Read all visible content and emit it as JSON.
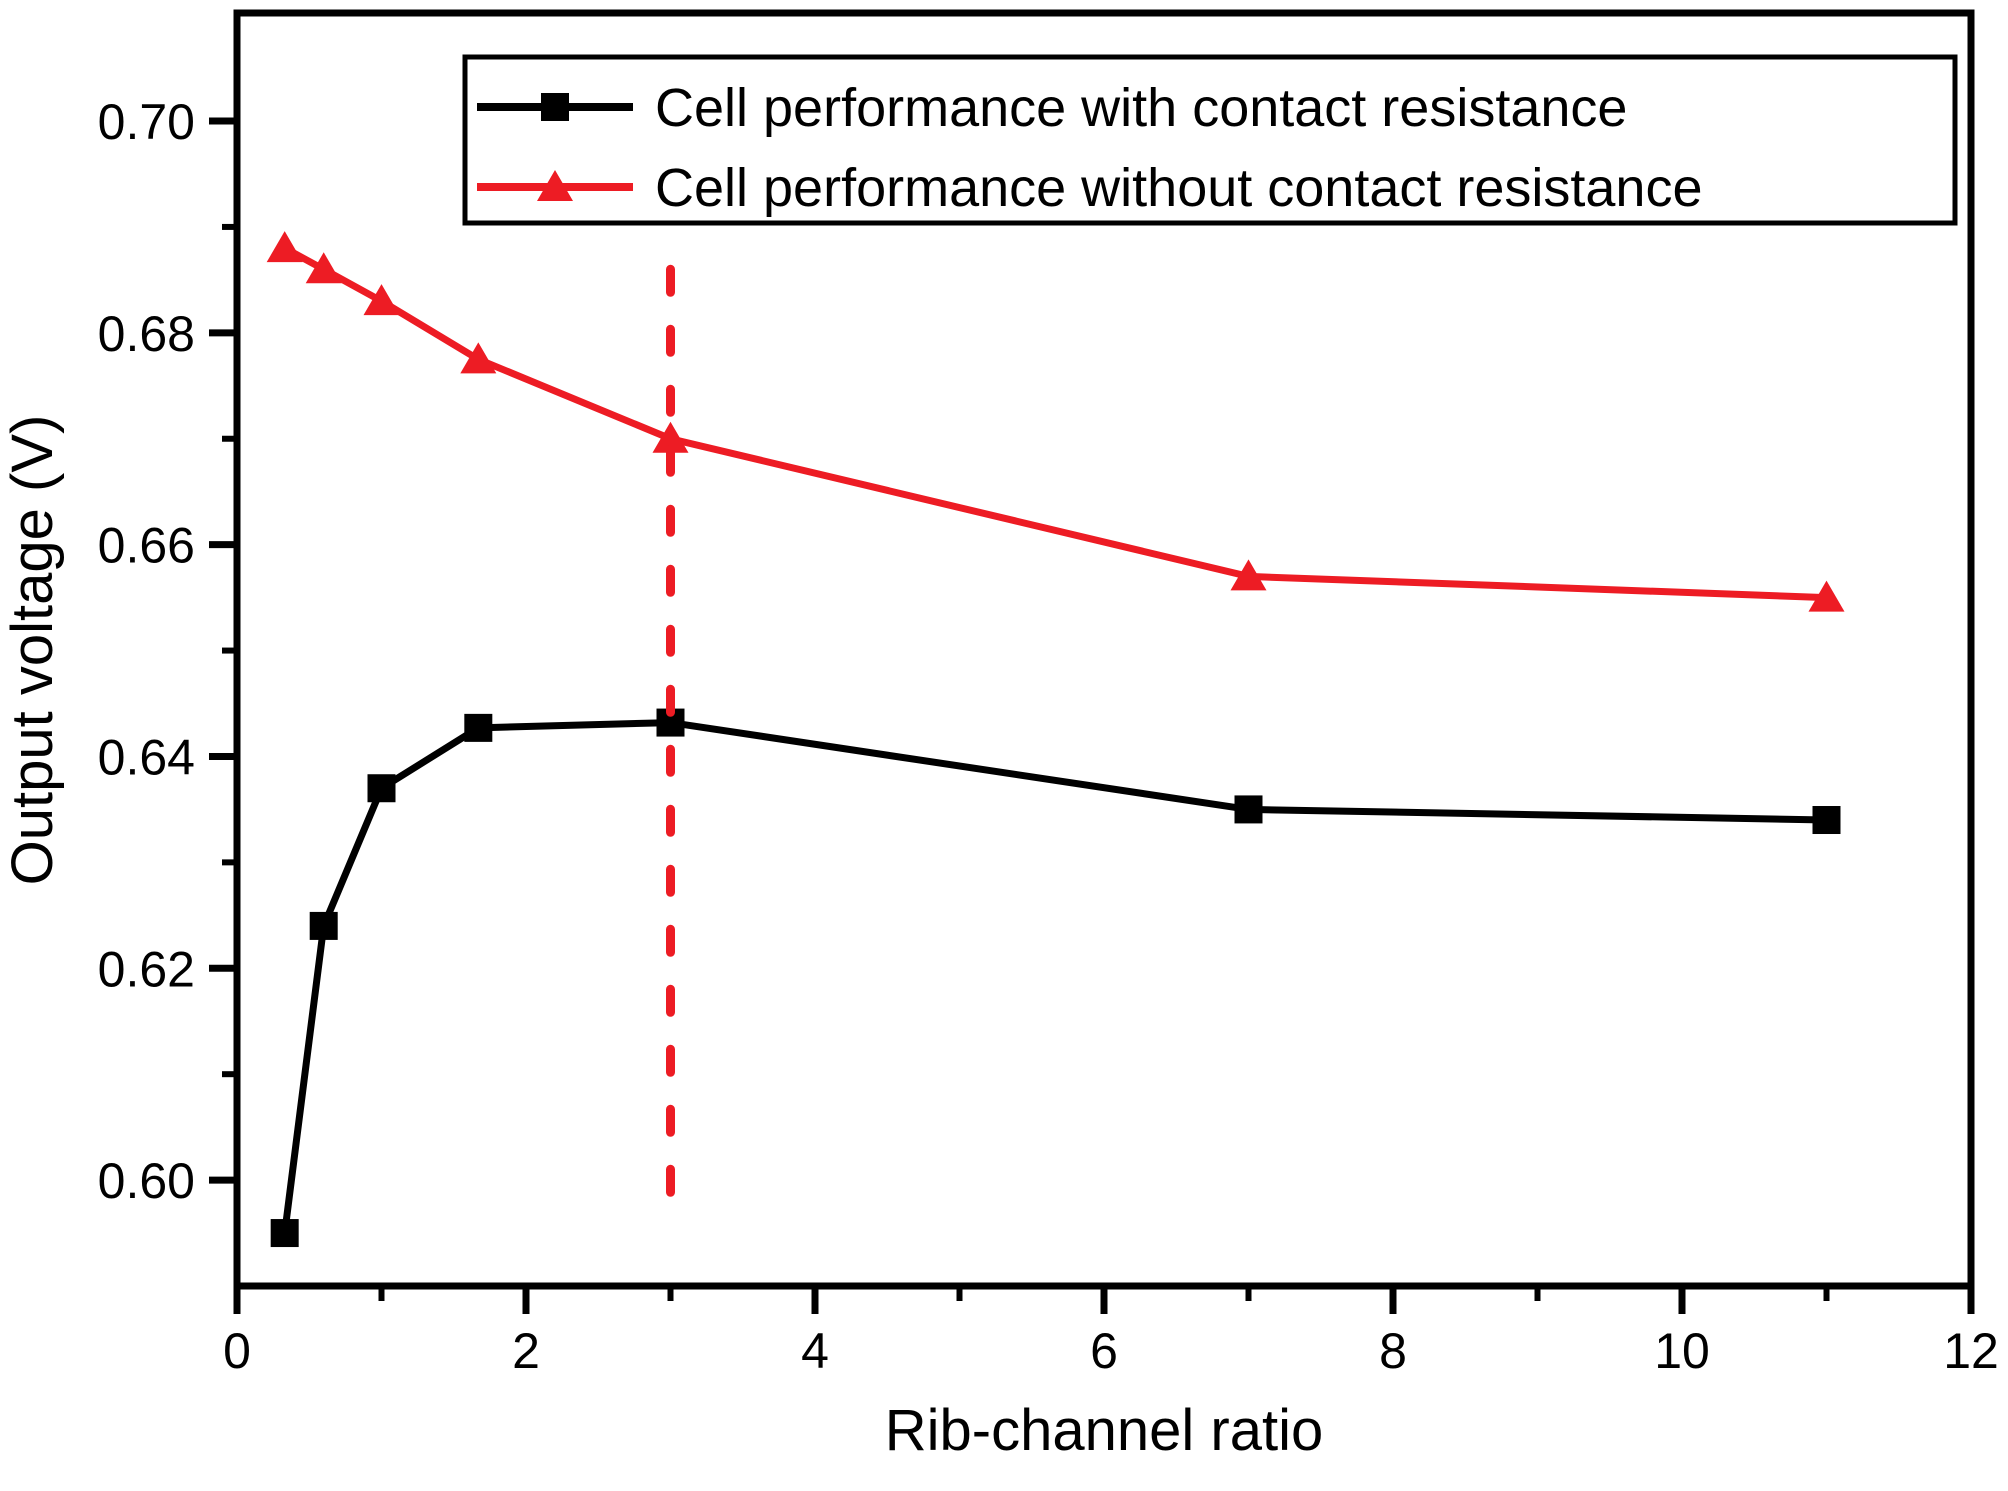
{
  "chart_data": {
    "type": "line",
    "title": "",
    "xlabel": "Rib-channel ratio",
    "ylabel": "Output voltage (V)",
    "xlim": [
      0,
      12
    ],
    "ylim": [
      0.59,
      0.7102
    ],
    "grid": false,
    "legend_position": "top-right-inside",
    "x_major_ticks": [
      {
        "value": 0,
        "label": "0"
      },
      {
        "value": 2,
        "label": "2"
      },
      {
        "value": 4,
        "label": "4"
      },
      {
        "value": 6,
        "label": "6"
      },
      {
        "value": 8,
        "label": "8"
      },
      {
        "value": 10,
        "label": "10"
      },
      {
        "value": 12,
        "label": "12"
      }
    ],
    "x_minor_ticks": [
      1,
      3,
      5,
      7,
      9,
      11
    ],
    "y_major_ticks": [
      {
        "value": 0.6,
        "label": "0.60"
      },
      {
        "value": 0.62,
        "label": "0.62"
      },
      {
        "value": 0.64,
        "label": "0.64"
      },
      {
        "value": 0.66,
        "label": "0.66"
      },
      {
        "value": 0.68,
        "label": "0.68"
      },
      {
        "value": 0.7,
        "label": "0.70"
      }
    ],
    "y_minor_ticks": [
      0.61,
      0.63,
      0.65,
      0.67,
      0.69
    ],
    "series": [
      {
        "name": "Cell performance with contact resistance",
        "color": "#000000",
        "marker": "square",
        "x": [
          0.33,
          0.6,
          1,
          1.67,
          3,
          7,
          11
        ],
        "y": [
          0.595,
          0.624,
          0.637,
          0.6427,
          0.6432,
          0.635,
          0.634
        ]
      },
      {
        "name": "Cell performance without contact resistance",
        "color": "#ed1c24",
        "marker": "triangle",
        "x": [
          0.33,
          0.6,
          1,
          1.67,
          3,
          7,
          11
        ],
        "y": [
          0.688,
          0.686,
          0.683,
          0.6775,
          0.67,
          0.657,
          0.655
        ]
      }
    ],
    "annotations": [
      {
        "type": "vline",
        "x": 3,
        "y_from": 0.597,
        "y_to": 0.686,
        "style": "dashed",
        "color": "#ed1c24"
      }
    ]
  }
}
